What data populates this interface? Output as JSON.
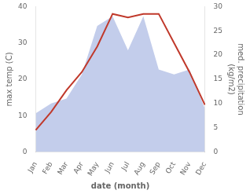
{
  "chart_data": {
    "type": "line",
    "categories": [
      "Jan",
      "Feb",
      "Mar",
      "Apr",
      "May",
      "Jun",
      "Jul",
      "Aug",
      "Sep",
      "Oct",
      "Nov",
      "Dec"
    ],
    "xlabel": "date (month)",
    "ylabel": "max temp (C)",
    "y2label": "med. precipitation\n(kg/m2)",
    "series": [
      {
        "type": "area",
        "axis": "y2",
        "color": "#b8c4e8",
        "values": [
          8,
          10,
          11,
          16,
          26,
          28,
          21,
          28,
          17,
          16,
          17,
          9
        ]
      },
      {
        "type": "line",
        "color": "#c0392b",
        "values": [
          6,
          11,
          17,
          22,
          29,
          38,
          37,
          38,
          38,
          30,
          22,
          13
        ]
      }
    ],
    "ylim": [
      0,
      40
    ],
    "yticks": [
      0,
      10,
      20,
      30,
      40
    ],
    "y2lim": [
      0,
      30
    ],
    "y2ticks": [
      0,
      5,
      10,
      15,
      20,
      25,
      30
    ],
    "grid": false
  }
}
